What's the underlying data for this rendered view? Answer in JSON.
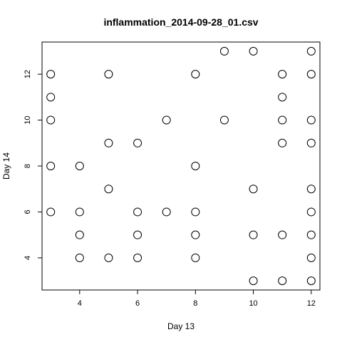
{
  "chart_data": {
    "type": "scatter",
    "title": "inflammation_2014-09-28_01.csv",
    "xlabel": "Day 13",
    "ylabel": "Day 14",
    "xlim": [
      2.7,
      12.3
    ],
    "ylim": [
      2.6,
      13.4
    ],
    "xticks": [
      4,
      6,
      8,
      10,
      12
    ],
    "yticks": [
      4,
      6,
      8,
      10,
      12
    ],
    "grid": false,
    "series": [
      {
        "points": [
          {
            "x": 3,
            "y": 12
          },
          {
            "x": 3,
            "y": 11
          },
          {
            "x": 3,
            "y": 10
          },
          {
            "x": 3,
            "y": 8
          },
          {
            "x": 3,
            "y": 6
          },
          {
            "x": 4,
            "y": 8
          },
          {
            "x": 4,
            "y": 6
          },
          {
            "x": 4,
            "y": 5
          },
          {
            "x": 4,
            "y": 4
          },
          {
            "x": 5,
            "y": 12
          },
          {
            "x": 5,
            "y": 9
          },
          {
            "x": 5,
            "y": 7
          },
          {
            "x": 5,
            "y": 4
          },
          {
            "x": 6,
            "y": 9
          },
          {
            "x": 6,
            "y": 6
          },
          {
            "x": 6,
            "y": 5
          },
          {
            "x": 6,
            "y": 4
          },
          {
            "x": 7,
            "y": 10
          },
          {
            "x": 7,
            "y": 6
          },
          {
            "x": 8,
            "y": 12
          },
          {
            "x": 8,
            "y": 8
          },
          {
            "x": 8,
            "y": 6
          },
          {
            "x": 8,
            "y": 5
          },
          {
            "x": 8,
            "y": 4
          },
          {
            "x": 9,
            "y": 13
          },
          {
            "x": 9,
            "y": 10
          },
          {
            "x": 10,
            "y": 13
          },
          {
            "x": 10,
            "y": 7
          },
          {
            "x": 10,
            "y": 5
          },
          {
            "x": 10,
            "y": 3
          },
          {
            "x": 11,
            "y": 12
          },
          {
            "x": 11,
            "y": 11
          },
          {
            "x": 11,
            "y": 10
          },
          {
            "x": 11,
            "y": 9
          },
          {
            "x": 11,
            "y": 5
          },
          {
            "x": 11,
            "y": 3
          },
          {
            "x": 12,
            "y": 13
          },
          {
            "x": 12,
            "y": 12
          },
          {
            "x": 12,
            "y": 10
          },
          {
            "x": 12,
            "y": 9
          },
          {
            "x": 12,
            "y": 7
          },
          {
            "x": 12,
            "y": 6
          },
          {
            "x": 12,
            "y": 5
          },
          {
            "x": 12,
            "y": 4
          },
          {
            "x": 12,
            "y": 3
          }
        ]
      }
    ]
  }
}
